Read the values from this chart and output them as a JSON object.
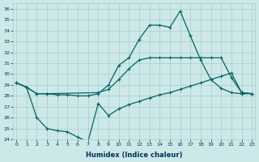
{
  "xlabel": "Humidex (Indice chaleur)",
  "bg_color": "#cce8e8",
  "line_color": "#006666",
  "grid_color": "#aacccc",
  "xlim": [
    -0.3,
    23.3
  ],
  "ylim": [
    24,
    36.5
  ],
  "yticks": [
    24,
    25,
    26,
    27,
    28,
    29,
    30,
    31,
    32,
    33,
    34,
    35,
    36
  ],
  "xticks": [
    0,
    1,
    2,
    3,
    4,
    5,
    6,
    7,
    8,
    9,
    10,
    11,
    12,
    13,
    14,
    15,
    16,
    17,
    18,
    19,
    20,
    21,
    22,
    23
  ],
  "line1_x": [
    0,
    1,
    2,
    3,
    4,
    5,
    6,
    7,
    8,
    9,
    10,
    11,
    12,
    13,
    14,
    15,
    16,
    17,
    18,
    19,
    20,
    21,
    22,
    23
  ],
  "line1_y": [
    29.2,
    28.8,
    28.2,
    28.2,
    28.1,
    28.1,
    28.0,
    28.0,
    28.2,
    29.0,
    30.8,
    31.5,
    33.2,
    34.5,
    34.5,
    34.3,
    35.8,
    33.5,
    31.3,
    29.5,
    28.7,
    28.3,
    28.2,
    28.2
  ],
  "line2_x": [
    0,
    1,
    2,
    3,
    8,
    9,
    10,
    11,
    12,
    13,
    14,
    15,
    16,
    17,
    18,
    19,
    20,
    21,
    22,
    23
  ],
  "line2_y": [
    29.2,
    28.8,
    28.2,
    28.2,
    28.3,
    28.6,
    29.5,
    30.5,
    31.3,
    31.5,
    31.5,
    31.5,
    31.5,
    31.5,
    31.5,
    31.5,
    31.5,
    29.7,
    28.3,
    28.2
  ],
  "line3_x": [
    0,
    1,
    2,
    3,
    4,
    5,
    6,
    7,
    8,
    9,
    10,
    11,
    12,
    13,
    14,
    15,
    16,
    17,
    18,
    19,
    20,
    21,
    22,
    23
  ],
  "line3_y": [
    29.2,
    28.8,
    26.0,
    25.0,
    24.8,
    24.7,
    24.2,
    23.8,
    27.3,
    26.2,
    26.8,
    27.2,
    27.5,
    27.8,
    28.1,
    28.3,
    28.6,
    28.9,
    29.2,
    29.5,
    29.8,
    30.1,
    28.3,
    28.2
  ]
}
